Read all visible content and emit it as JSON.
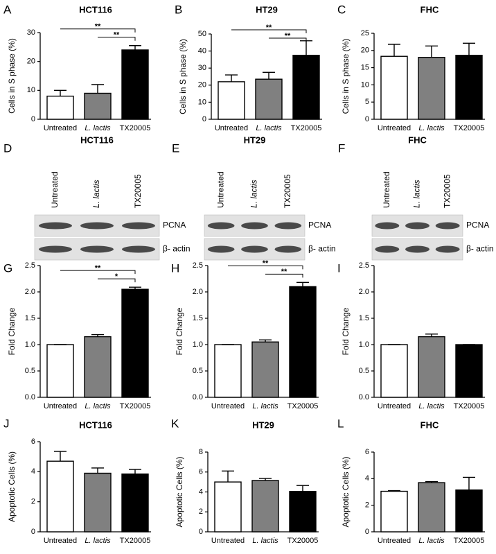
{
  "chart_data": [
    {
      "type": "bar",
      "panel": "A",
      "title": "HCT116",
      "y_label": "Cells in S phase (%)",
      "categories": [
        "Untreated",
        "L. lactis",
        "TX20005"
      ],
      "category_style": [
        "normal",
        "italic",
        "normal"
      ],
      "values": [
        8,
        9,
        24
      ],
      "errors": [
        2,
        3,
        1.5
      ],
      "colors": [
        "#ffffff",
        "#808080",
        "#000000"
      ],
      "ylim": [
        0,
        30
      ],
      "yticks": [
        0,
        10,
        20,
        30
      ],
      "significance": [
        {
          "label": "**",
          "pair": [
            0,
            2
          ]
        },
        {
          "label": "**",
          "pair": [
            1,
            2
          ]
        }
      ]
    },
    {
      "type": "bar",
      "panel": "B",
      "title": "HT29",
      "y_label": "Cells in S phase (%)",
      "categories": [
        "Untreated",
        "L. lactis",
        "TX20005"
      ],
      "category_style": [
        "normal",
        "italic",
        "normal"
      ],
      "values": [
        22,
        23.5,
        37.5
      ],
      "errors": [
        4,
        4,
        8.5
      ],
      "colors": [
        "#ffffff",
        "#808080",
        "#000000"
      ],
      "ylim": [
        0,
        50
      ],
      "yticks": [
        0,
        10,
        20,
        30,
        40,
        50
      ],
      "significance": [
        {
          "label": "**",
          "pair": [
            0,
            2
          ]
        },
        {
          "label": "**",
          "pair": [
            1,
            2
          ]
        }
      ]
    },
    {
      "type": "bar",
      "panel": "C",
      "title": "FHC",
      "y_label": "Cells in S phase (%)",
      "categories": [
        "Untreated",
        "L. lactis",
        "TX20005"
      ],
      "category_style": [
        "normal",
        "italic",
        "normal"
      ],
      "values": [
        18.3,
        18,
        18.6
      ],
      "errors": [
        3.5,
        3.3,
        3.5
      ],
      "colors": [
        "#ffffff",
        "#808080",
        "#000000"
      ],
      "ylim": [
        0,
        25
      ],
      "yticks": [
        0,
        5,
        10,
        15,
        20,
        25
      ]
    },
    {
      "type": "bar",
      "panel": "G",
      "y_label": "Fold Change",
      "categories": [
        "Untreated",
        "L. lactis",
        "TX20005"
      ],
      "category_style": [
        "normal",
        "italic",
        "normal"
      ],
      "values": [
        1.0,
        1.15,
        2.05
      ],
      "errors": [
        0,
        0.04,
        0.04
      ],
      "colors": [
        "#ffffff",
        "#808080",
        "#000000"
      ],
      "ylim": [
        0,
        2.5
      ],
      "yticks": [
        {
          "value": 0,
          "label": "0.0"
        },
        0.5,
        {
          "value": 1,
          "label": "1.0"
        },
        1.5,
        {
          "value": 2,
          "label": "2.0"
        },
        2.5
      ],
      "significance": [
        {
          "label": "**",
          "pair": [
            0,
            2
          ]
        },
        {
          "label": "*",
          "pair": [
            1,
            2
          ]
        }
      ]
    },
    {
      "type": "bar",
      "panel": "H",
      "y_label": "Fold Change",
      "categories": [
        "Untreated",
        "L. lactis",
        "TX20005"
      ],
      "category_style": [
        "normal",
        "italic",
        "normal"
      ],
      "values": [
        1.0,
        1.05,
        2.1
      ],
      "errors": [
        0,
        0.04,
        0.08
      ],
      "colors": [
        "#ffffff",
        "#808080",
        "#000000"
      ],
      "ylim": [
        0,
        2.5
      ],
      "yticks": [
        {
          "value": 0,
          "label": "0.0"
        },
        0.5,
        {
          "value": 1,
          "label": "1.0"
        },
        1.5,
        {
          "value": 2,
          "label": "2.0"
        },
        2.5
      ],
      "significance": [
        {
          "label": "**",
          "pair": [
            0,
            2
          ]
        },
        {
          "label": "**",
          "pair": [
            1,
            2
          ]
        }
      ]
    },
    {
      "type": "bar",
      "panel": "I",
      "y_label": "Fold Change",
      "categories": [
        "Untreated",
        "L. lactis",
        "TX20005"
      ],
      "category_style": [
        "normal",
        "italic",
        "normal"
      ],
      "values": [
        1.0,
        1.15,
        1.0
      ],
      "errors": [
        0,
        0.05,
        0
      ],
      "colors": [
        "#ffffff",
        "#808080",
        "#000000"
      ],
      "ylim": [
        0,
        2.5
      ],
      "yticks": [
        {
          "value": 0,
          "label": "0.0"
        },
        0.5,
        {
          "value": 1,
          "label": "1.0"
        },
        1.5,
        {
          "value": 2,
          "label": "2.0"
        },
        2.5
      ]
    },
    {
      "type": "bar",
      "panel": "J",
      "title": "HCT116",
      "y_label": "Apoptotic Cells (%)",
      "categories": [
        "Untreated",
        "L. lactis",
        "TX20005"
      ],
      "category_style": [
        "normal",
        "italic",
        "normal"
      ],
      "values": [
        4.7,
        3.9,
        3.85
      ],
      "errors": [
        0.65,
        0.35,
        0.3
      ],
      "colors": [
        "#ffffff",
        "#808080",
        "#000000"
      ],
      "ylim": [
        0,
        6
      ],
      "yticks": [
        0,
        2,
        4,
        6
      ]
    },
    {
      "type": "bar",
      "panel": "K",
      "title": "HT29",
      "y_label": "Apoptotic Cells (%)",
      "categories": [
        "Untreated",
        "L. lactis",
        "TX20005"
      ],
      "category_style": [
        "normal",
        "italic",
        "normal"
      ],
      "values": [
        5.0,
        5.15,
        4.05
      ],
      "errors": [
        1.1,
        0.2,
        0.6
      ],
      "colors": [
        "#ffffff",
        "#808080",
        "#000000"
      ],
      "ylim": [
        0,
        8
      ],
      "yticks": [
        0,
        2,
        4,
        6,
        8
      ]
    },
    {
      "type": "bar",
      "panel": "L",
      "title": "FHC",
      "y_label": "Apoptotic Cells (%)",
      "categories": [
        "Untreated",
        "L. lactis",
        "TX20005"
      ],
      "category_style": [
        "normal",
        "italic",
        "normal"
      ],
      "values": [
        3.05,
        3.7,
        3.15
      ],
      "errors": [
        0.05,
        0.08,
        0.95
      ],
      "colors": [
        "#ffffff",
        "#808080",
        "#000000"
      ],
      "ylim": [
        0,
        6
      ],
      "yticks": [
        0,
        2,
        4,
        6
      ]
    }
  ],
  "blots": [
    {
      "panel": "D",
      "title": "HCT116",
      "lanes": [
        "Untreated",
        "L. lactis",
        "TX20005"
      ],
      "lane_style": [
        "normal",
        "italic",
        "normal"
      ],
      "bands": [
        "PCNA",
        "β- actin"
      ]
    },
    {
      "panel": "E",
      "title": "HT29",
      "lanes": [
        "Untreated",
        "L. lactis",
        "TX20005"
      ],
      "lane_style": [
        "normal",
        "italic",
        "normal"
      ],
      "bands": [
        "PCNA",
        "β- actin"
      ]
    },
    {
      "panel": "F",
      "title": "FHC",
      "lanes": [
        "Untreated",
        "L. lactis",
        "TX20005"
      ],
      "lane_style": [
        "normal",
        "italic",
        "normal"
      ],
      "bands": [
        "PCNA",
        "β- actin"
      ]
    }
  ]
}
